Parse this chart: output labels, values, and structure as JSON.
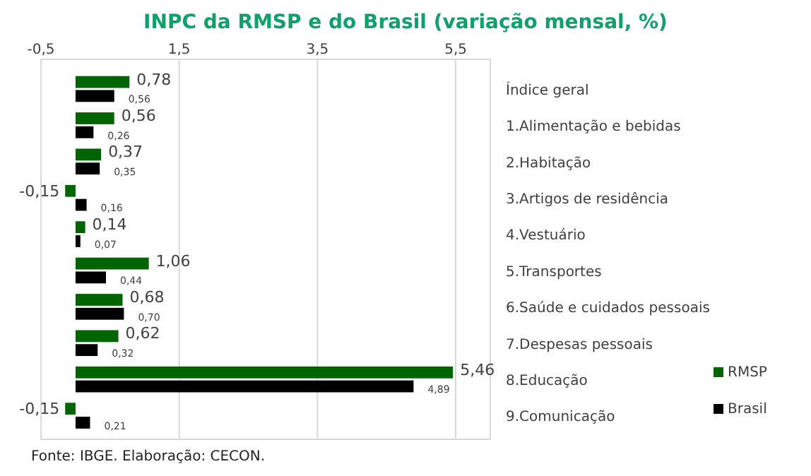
{
  "chart_data": {
    "type": "bar",
    "orientation": "horizontal",
    "title": "INPC da RMSP e do Brasil (variação mensal, %)",
    "categories": [
      "Índice geral",
      "1.Alimentação e bebidas",
      "2.Habitação",
      "3.Artigos de residência",
      "4.Vestuário",
      "5.Transportes",
      "6.Saúde e cuidados pessoais",
      "7.Despesas pessoais",
      "8.Educação",
      "9.Comunicação"
    ],
    "series": [
      {
        "name": "RMSP",
        "color": "#006400",
        "values": [
          0.78,
          0.56,
          0.37,
          -0.15,
          0.14,
          1.06,
          0.68,
          0.62,
          5.46,
          -0.15
        ],
        "value_labels": [
          "0,78",
          "0,56",
          "0,37",
          "-0,15",
          "0,14",
          "1,06",
          "0,68",
          "0,62",
          "5,46",
          "-0,15"
        ]
      },
      {
        "name": "Brasil",
        "color": "#000000",
        "values": [
          0.56,
          0.26,
          0.35,
          0.16,
          0.07,
          0.44,
          0.7,
          0.32,
          4.89,
          0.21
        ],
        "value_labels": [
          "0,56",
          "0,26",
          "0,35",
          "0,16",
          "0,07",
          "0,44",
          "0,70",
          "0,32",
          "4,89",
          "0,21"
        ]
      }
    ],
    "xlim": [
      -0.5,
      6
    ],
    "xticks": [
      {
        "value": -0.5,
        "label": "-0,5"
      },
      {
        "value": 1.5,
        "label": "1,5"
      },
      {
        "value": 3.5,
        "label": "3,5"
      },
      {
        "value": 5.5,
        "label": "5,5"
      }
    ],
    "grid": "x",
    "legend": "bottom right",
    "annotations": [
      "Fonte: IBGE. Elaboração: CECON."
    ]
  }
}
